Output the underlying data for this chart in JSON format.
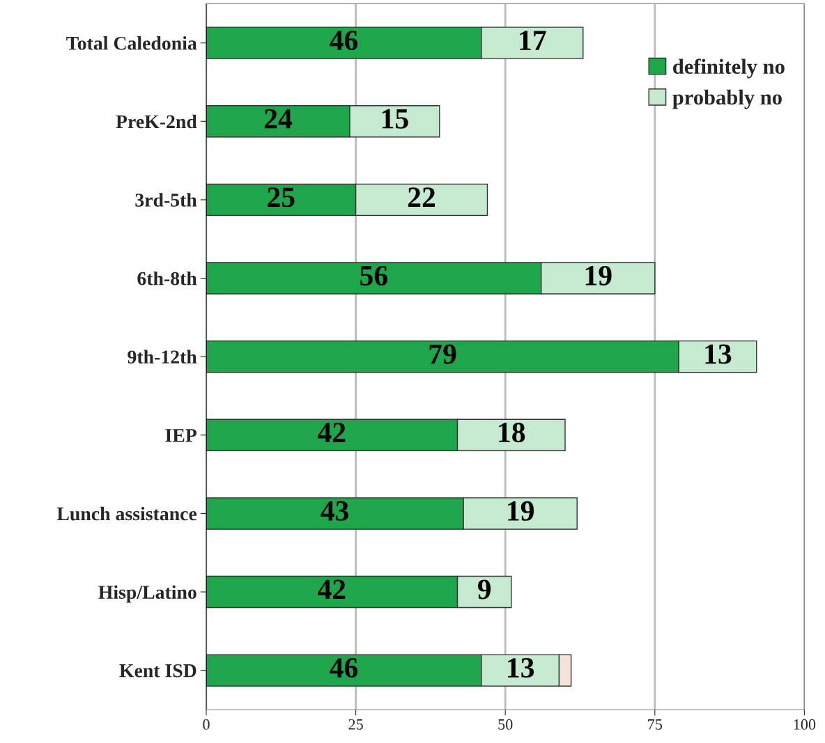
{
  "chart_data": {
    "type": "bar",
    "orientation": "horizontal",
    "stacked": true,
    "categories": [
      "Total Caledonia",
      "PreK-2nd",
      "3rd-5th",
      "6th-8th",
      "9th-12th",
      "IEP",
      "Lunch assistance",
      "Hisp/Latino",
      "Kent ISD"
    ],
    "series": [
      {
        "name": "definitely no",
        "color": "#1fa64a",
        "values": [
          46,
          24,
          25,
          56,
          79,
          42,
          43,
          42,
          46
        ],
        "value_labels": [
          "46",
          "24",
          "25",
          "56",
          "79",
          "42",
          "43",
          "42",
          "46"
        ]
      },
      {
        "name": "probably no",
        "color": "#c6ead0",
        "values": [
          17,
          15,
          22,
          19,
          13,
          18,
          19,
          9,
          13
        ],
        "value_labels": [
          "17",
          "15",
          "22",
          "19",
          "13",
          "18",
          "19",
          "9",
          "13"
        ]
      },
      {
        "color": "#f3e1da",
        "values": [
          null,
          null,
          null,
          null,
          null,
          null,
          null,
          null,
          2
        ]
      }
    ],
    "xlim": [
      0,
      100
    ],
    "xticks": [
      0,
      25,
      50,
      75,
      100
    ],
    "grid": "x",
    "legend": "top right"
  }
}
